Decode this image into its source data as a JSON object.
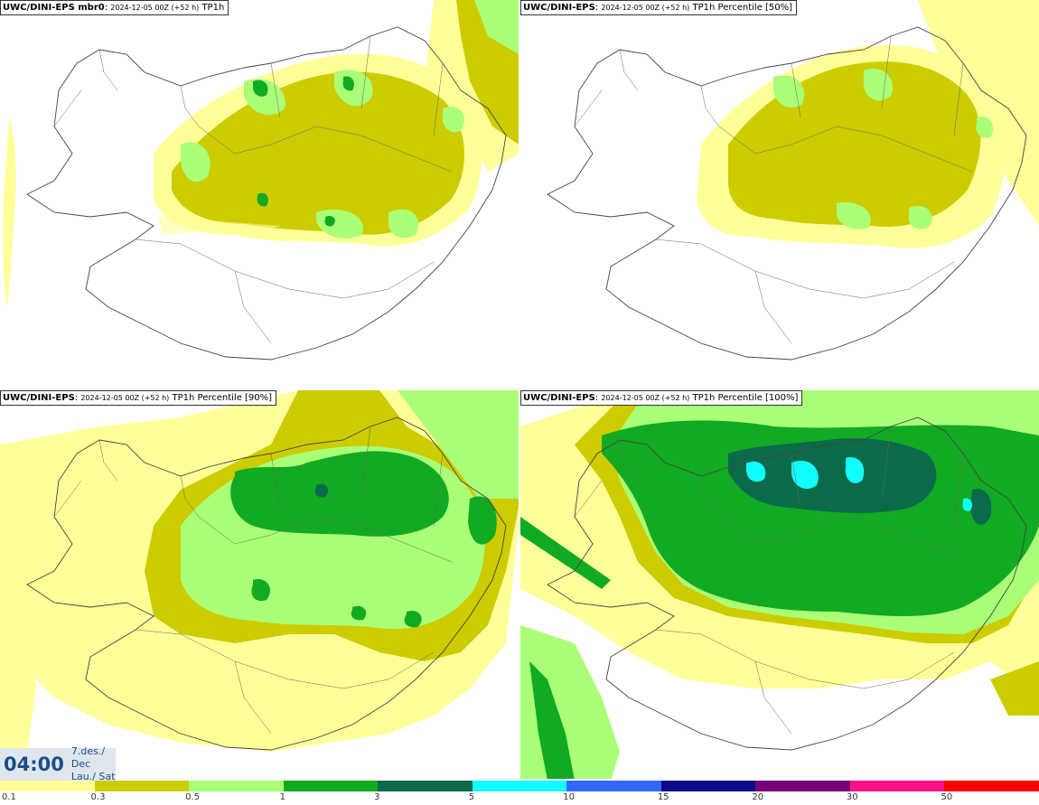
{
  "panels": [
    {
      "model": "UWC/DINI-EPS mbr0",
      "meta": "2024-12-05 00Z (+52 h)",
      "product": "TP1h"
    },
    {
      "model": "UWC/DINI-EPS",
      "meta": "2024-12-05 00Z (+52 h)",
      "product": "TP1h Percentile [50%]"
    },
    {
      "model": "UWC/DINI-EPS",
      "meta": "2024-12-05 00Z (+52 h)",
      "product": "TP1h Percentile [90%]"
    },
    {
      "model": "UWC/DINI-EPS",
      "meta": "2024-12-05 00Z (+52 h)",
      "product": "TP1h Percentile [100%]"
    }
  ],
  "valid_time": {
    "hour": "04:00",
    "date_line": "7.des./ Dec",
    "day_line": "Lau./ Sat"
  },
  "scale": {
    "colors": [
      "#ffff99",
      "#cccc00",
      "#aaff77",
      "#11aa22",
      "#0b6a4a",
      "#11ffff",
      "#3366ff",
      "#0a0a88",
      "#770077",
      "#ff1188",
      "#ff0000"
    ],
    "labels": [
      "0.1",
      "0.3",
      "0.5",
      "1",
      "3",
      "5",
      "10",
      "15",
      "20",
      "30",
      "50"
    ]
  },
  "legend_levels": {
    "light_yellow": "#ffff99",
    "olive": "#cccc00",
    "light_green": "#aaff77",
    "green": "#11aa22",
    "dark_green": "#0b6a4a",
    "cyan": "#11ffff"
  }
}
